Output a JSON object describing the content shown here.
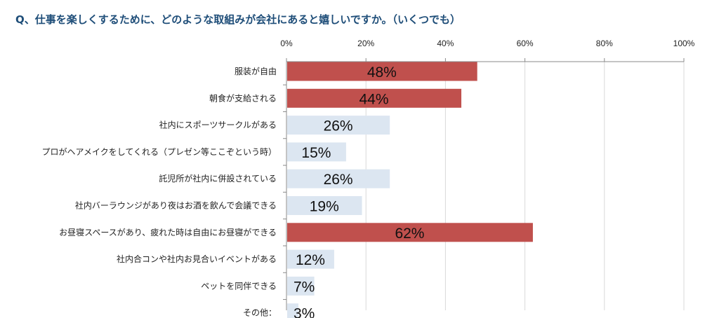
{
  "chart_data": {
    "type": "bar",
    "orientation": "horizontal",
    "title": "Q、仕事を楽しくするために、どのような取組みが会社にあると嬉しいですか。（いくつでも）",
    "categories": [
      "服装が自由",
      "朝食が支給される",
      "社内にスポーツサークルがある",
      "プロがヘアメイクをしてくれる（プレゼン等ここぞという時）",
      "託児所が社内に併設されている",
      "社内バーラウンジがあり夜はお酒を飲んで会議できる",
      "お昼寝スペースがあり、疲れた時は自由にお昼寝ができる",
      "社内合コンや社内お見合いイベントがある",
      "ペットを同伴できる",
      "その他："
    ],
    "values": [
      48,
      44,
      26,
      15,
      26,
      19,
      62,
      12,
      7,
      3
    ],
    "value_labels": [
      "48%",
      "44%",
      "26%",
      "15%",
      "26%",
      "19%",
      "62%",
      "12%",
      "7%",
      "3%"
    ],
    "highlighted": [
      true,
      true,
      false,
      false,
      false,
      false,
      true,
      false,
      false,
      false
    ],
    "xlim": [
      0,
      100
    ],
    "xticks": [
      0,
      20,
      40,
      60,
      80,
      100
    ],
    "xtick_labels": [
      "0%",
      "20%",
      "40%",
      "60%",
      "80%",
      "100%"
    ],
    "axis_position": "top",
    "xlabel": "",
    "ylabel": "",
    "grid": true,
    "colors": {
      "highlight": "#c0504d",
      "normal": "#dce6f1",
      "grid": "#d9d9d9",
      "axis": "#888888",
      "title": "#1f4e79"
    }
  }
}
